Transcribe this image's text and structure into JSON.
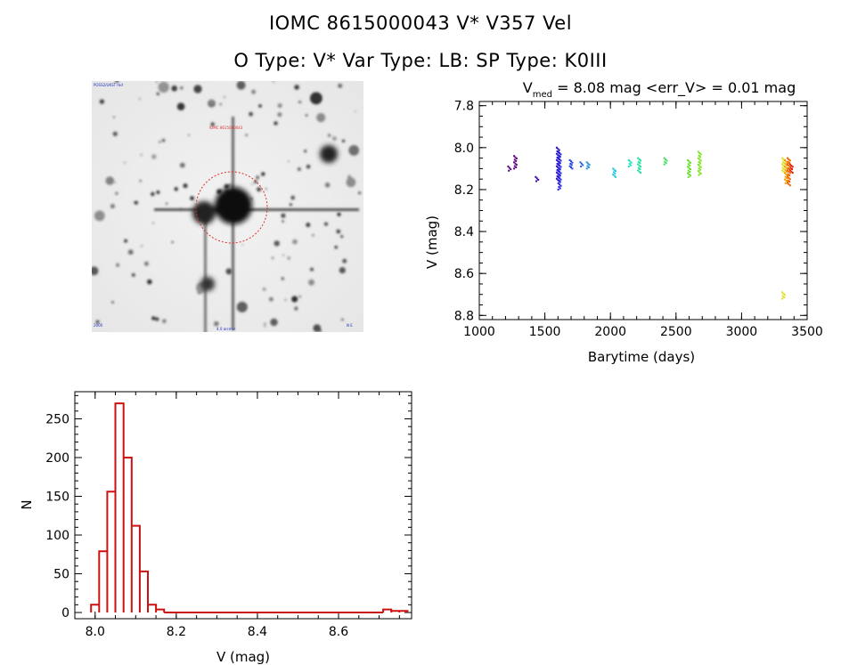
{
  "header": {
    "line1": "IOMC 8615000043     V* V357 Vel",
    "line2": "O Type: V*   Var Type: LB:   SP Type: K0III"
  },
  "image_panel": {
    "top_left_label": "POSS2/UKST red",
    "target_label": "IOMC 8615000043",
    "bottom_label": "4.0 arcmin",
    "bottom_left_label": "2000",
    "bottom_right_label": "N E"
  },
  "chart_data": [
    {
      "type": "scatter",
      "title_prefix": "V",
      "title_subscript": "med",
      "title_suffix": " = 8.08 mag <err_V> = 0.01 mag",
      "xlabel": "Barytime (days)",
      "ylabel": "V (mag)",
      "xlim": [
        1000,
        3500
      ],
      "ylim": [
        8.82,
        7.78
      ],
      "xticks": [
        1000,
        1500,
        2000,
        2500,
        3000,
        3500
      ],
      "xtick_labels": [
        "1000",
        "1500",
        "2000",
        "2500",
        "3000",
        "3500"
      ],
      "yticks": [
        7.8,
        8.0,
        8.2,
        8.4,
        8.6,
        8.8
      ],
      "ytick_labels": [
        "7.8",
        "8.0",
        "8.2",
        "8.4",
        "8.6",
        "8.8"
      ],
      "clusters": [
        {
          "x": 1230,
          "ymin": 8.09,
          "ymax": 8.11,
          "color": "#5a0080"
        },
        {
          "x": 1275,
          "ymin": 8.04,
          "ymax": 8.1,
          "color": "#5a0080"
        },
        {
          "x": 1440,
          "ymin": 8.14,
          "ymax": 8.16,
          "color": "#3a00a0"
        },
        {
          "x": 1600,
          "ymin": 8.0,
          "ymax": 8.16,
          "color": "#2a10c8"
        },
        {
          "x": 1612,
          "ymin": 8.02,
          "ymax": 8.2,
          "color": "#2020e0"
        },
        {
          "x": 1700,
          "ymin": 8.06,
          "ymax": 8.1,
          "color": "#2040e0"
        },
        {
          "x": 1780,
          "ymin": 8.07,
          "ymax": 8.09,
          "color": "#2060e0"
        },
        {
          "x": 1830,
          "ymin": 8.07,
          "ymax": 8.1,
          "color": "#2090e0"
        },
        {
          "x": 2030,
          "ymin": 8.1,
          "ymax": 8.14,
          "color": "#20c8e0"
        },
        {
          "x": 2150,
          "ymin": 8.06,
          "ymax": 8.09,
          "color": "#20e0c0"
        },
        {
          "x": 2220,
          "ymin": 8.05,
          "ymax": 8.12,
          "color": "#20e0a0"
        },
        {
          "x": 2420,
          "ymin": 8.05,
          "ymax": 8.08,
          "color": "#40e060"
        },
        {
          "x": 2600,
          "ymin": 8.06,
          "ymax": 8.14,
          "color": "#60e020"
        },
        {
          "x": 2680,
          "ymin": 8.02,
          "ymax": 8.13,
          "color": "#80e020"
        },
        {
          "x": 3320,
          "ymin": 8.05,
          "ymax": 8.12,
          "color": "#e0e020"
        },
        {
          "x": 3320,
          "ymin": 8.69,
          "ymax": 8.72,
          "color": "#e0e020"
        },
        {
          "x": 3340,
          "ymin": 8.06,
          "ymax": 8.17,
          "color": "#f0a000"
        },
        {
          "x": 3360,
          "ymin": 8.05,
          "ymax": 8.18,
          "color": "#f06000"
        },
        {
          "x": 3380,
          "ymin": 8.08,
          "ymax": 8.12,
          "color": "#e02000"
        }
      ]
    },
    {
      "type": "bar",
      "xlabel": "V (mag)",
      "ylabel": "N",
      "xlim": [
        7.95,
        8.78
      ],
      "ylim": [
        -8,
        285
      ],
      "xticks": [
        8.0,
        8.2,
        8.4,
        8.6
      ],
      "xtick_labels": [
        "8.0",
        "8.2",
        "8.4",
        "8.6"
      ],
      "yticks": [
        0,
        50,
        100,
        150,
        200,
        250
      ],
      "ytick_labels": [
        "0",
        "50",
        "100",
        "150",
        "200",
        "250"
      ],
      "bin_start": 7.99,
      "bin_width": 0.02,
      "values": [
        10,
        79,
        156,
        270,
        200,
        112,
        53,
        10,
        4,
        0,
        0,
        0,
        0,
        0,
        0,
        0,
        0,
        0,
        0,
        0,
        0,
        0,
        0,
        0,
        0,
        0,
        0,
        0,
        0,
        0,
        0,
        0,
        0,
        0,
        0,
        0,
        4,
        2,
        2
      ],
      "color": "#cc1111"
    }
  ]
}
